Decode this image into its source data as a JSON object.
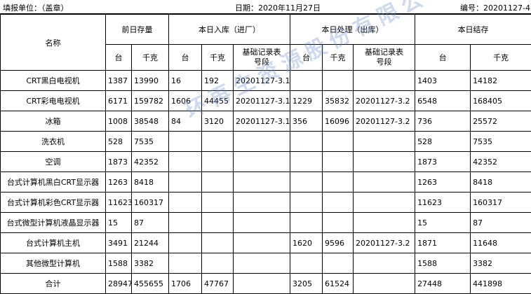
{
  "header": {
    "unit": "填报单位：（盖章）",
    "date": "日期：2020年11月27日",
    "number": "编号：20201127-4."
  },
  "table": {
    "name_header": "名称",
    "groups": [
      "前日存量",
      "本日入库（进厂）",
      "本日处理（出库）",
      "本日结存"
    ],
    "subheaders": [
      "台",
      "千克",
      "台",
      "千克",
      "基础记录表号段",
      "台",
      "千克",
      "基础记录表号段",
      "台",
      "千克"
    ],
    "rows": [
      [
        "CRT黑白电视机",
        1387,
        13990,
        16,
        192,
        "20201127-3.1",
        null,
        null,
        null,
        1403,
        14182
      ],
      [
        "CRT彩电电视机",
        6171,
        159782,
        1606,
        44455,
        "20201127-3.1",
        1229,
        35832,
        "20201127-3.2",
        6548,
        168405
      ],
      [
        "冰箱",
        1008,
        38548,
        84,
        3120,
        "20201127-3.1",
        356,
        16096,
        "20201127-3.2",
        736,
        25572
      ],
      [
        "洗衣机",
        528,
        7535,
        null,
        null,
        null,
        null,
        null,
        null,
        528,
        7535
      ],
      [
        "空调",
        1873,
        42352,
        null,
        null,
        null,
        null,
        null,
        null,
        1873,
        42352
      ],
      [
        "台式计算机黑白CRT显示器",
        1263,
        8418,
        null,
        null,
        null,
        null,
        null,
        null,
        1263,
        8418
      ],
      [
        "台式计算机彩色CRT显示器",
        11623,
        160317,
        null,
        null,
        null,
        null,
        null,
        null,
        11623,
        160317
      ],
      [
        "台式微型计算机液晶显示器",
        15,
        87,
        null,
        null,
        null,
        null,
        null,
        null,
        15,
        87
      ],
      [
        "台式计算机主机",
        3491,
        21244,
        null,
        null,
        null,
        1620,
        9596,
        "20201127-3.2",
        1871,
        11648
      ],
      [
        "其他微型计算机",
        1588,
        3382,
        null,
        null,
        null,
        null,
        null,
        null,
        1588,
        3382
      ],
      [
        "合计",
        28947,
        455655,
        1706,
        47767,
        null,
        3205,
        61524,
        null,
        27448,
        441898
      ]
    ]
  },
  "watermark": "环再生资源股份有限公司"
}
